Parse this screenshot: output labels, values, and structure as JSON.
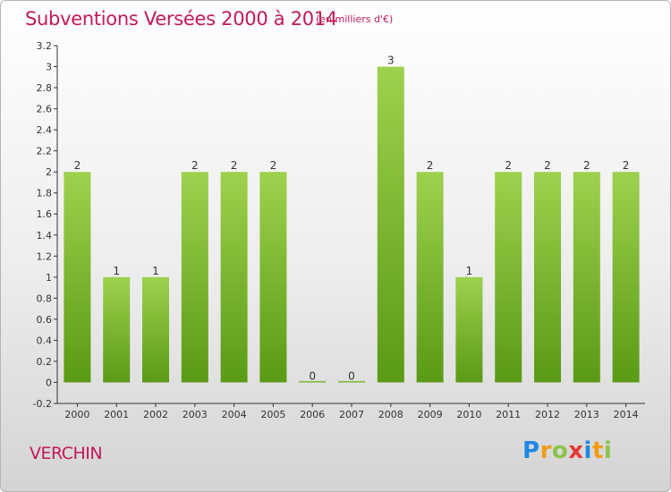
{
  "header": {
    "title": "Subventions Versées 2000 à 2014",
    "subtitle": "(en milliers d'€)"
  },
  "footer": {
    "commune": "VERCHIN",
    "logo_letters": [
      "P",
      "r",
      "o",
      "x",
      "i",
      "t",
      "i"
    ],
    "logo_colors": [
      "#1e88e5",
      "#f39c12",
      "#8bc34a",
      "#e53935",
      "#1e88e5",
      "#f39c12",
      "#8bc34a"
    ]
  },
  "colors": {
    "bar_top": "#9ed14e",
    "bar_bottom": "#5a9a14",
    "title": "#c2185b",
    "axis": "#333333"
  },
  "chart_data": {
    "type": "bar",
    "title": "Subventions Versées 2000 à 2014",
    "subtitle": "(en milliers d'€)",
    "categories": [
      "2000",
      "2001",
      "2002",
      "2003",
      "2004",
      "2005",
      "2006",
      "2007",
      "2008",
      "2009",
      "2010",
      "2011",
      "2012",
      "2013",
      "2014"
    ],
    "values": [
      2,
      1,
      1,
      2,
      2,
      2,
      0,
      0,
      3,
      2,
      1,
      2,
      2,
      2,
      2
    ],
    "value_labels": [
      "2",
      "1",
      "1",
      "2",
      "2",
      "2",
      "0",
      "0",
      "3",
      "2",
      "1",
      "2",
      "2",
      "2",
      "2"
    ],
    "ylim": [
      -0.2,
      3.2
    ],
    "yticks": [
      -0.2,
      0,
      0.2,
      0.4,
      0.6,
      0.8,
      1,
      1.2,
      1.4,
      1.6,
      1.8,
      2,
      2.2,
      2.4,
      2.6,
      2.8,
      3,
      3.2
    ],
    "ytick_labels": [
      "-0.2",
      "0",
      "0.2",
      "0.4",
      "0.6",
      "0.8",
      "1",
      "1.2",
      "1.4",
      "1.6",
      "1.8",
      "2",
      "2.2",
      "2.4",
      "2.6",
      "2.8",
      "3",
      "3.2"
    ],
    "grid": false,
    "legend": "none"
  }
}
